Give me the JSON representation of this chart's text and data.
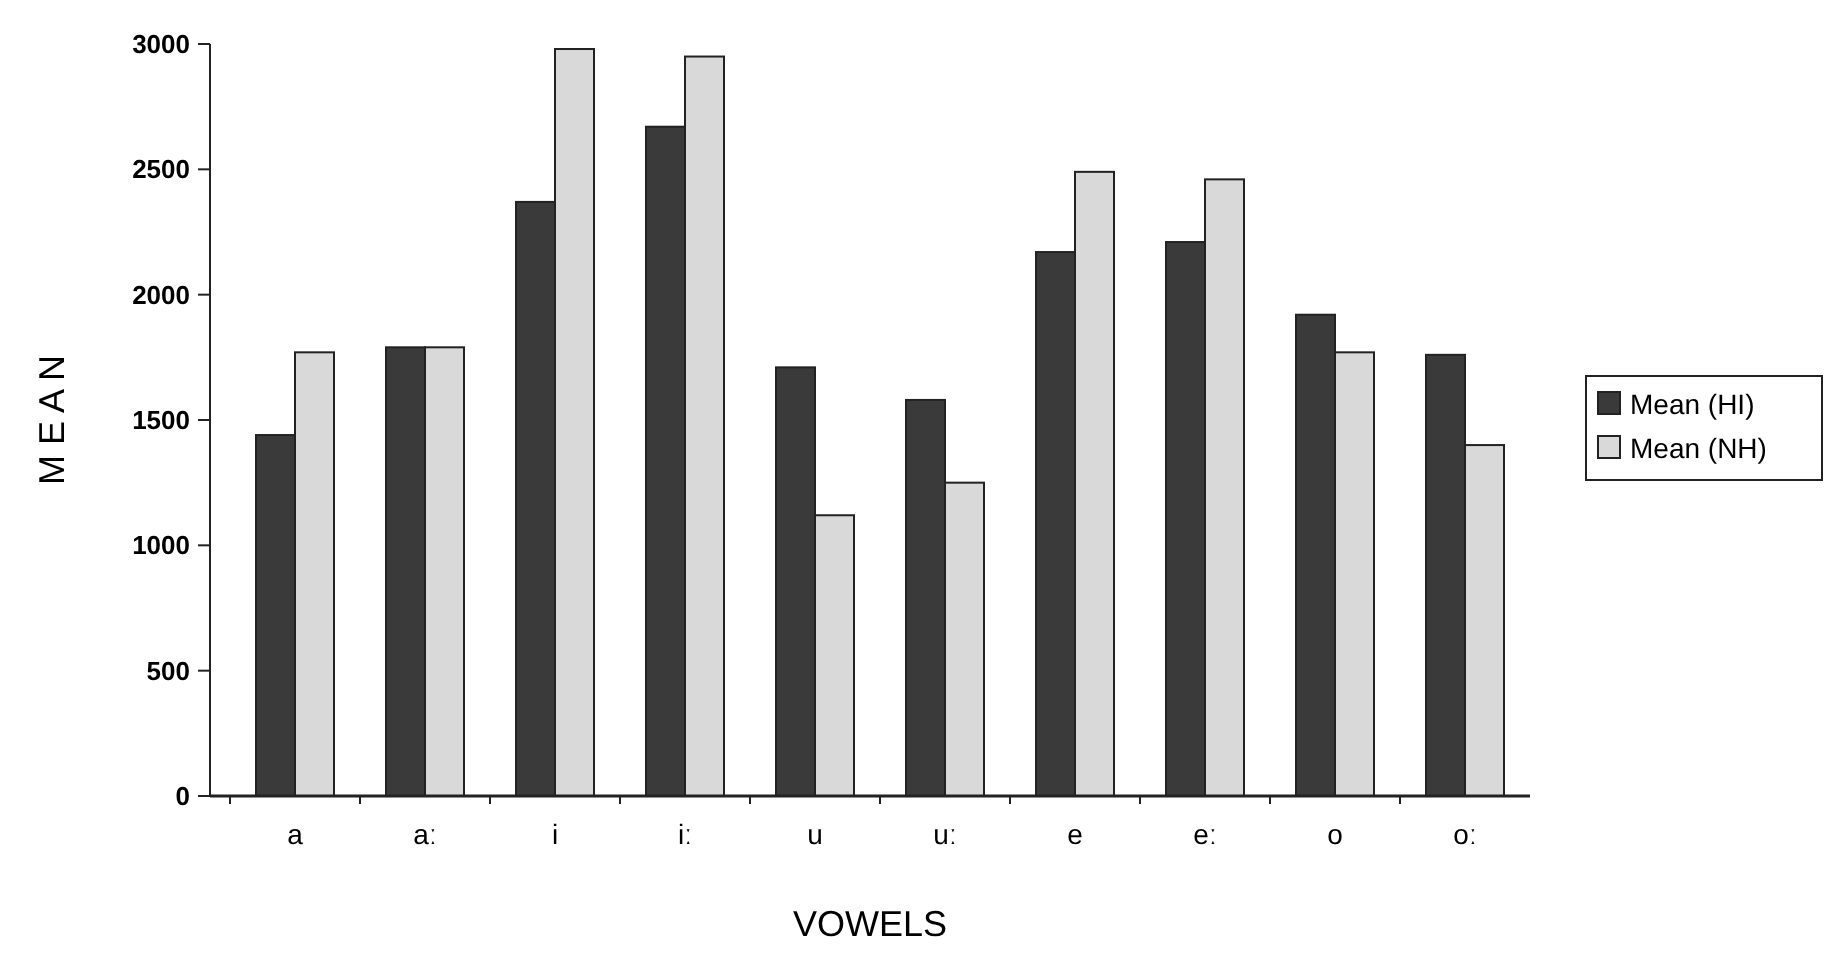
{
  "chart_data": {
    "type": "bar",
    "xlabel": "VOWELS",
    "ylabel": "M E A N",
    "categories": [
      "a",
      "aː",
      "i",
      "iː",
      "u",
      "uː",
      "e",
      "eː",
      "o",
      "oː"
    ],
    "series": [
      {
        "name": "Mean (HI)",
        "color": "#3a3a3a",
        "values": [
          1440,
          1790,
          2370,
          2670,
          1710,
          1580,
          2170,
          2210,
          1920,
          1760
        ]
      },
      {
        "name": "Mean (NH)",
        "color": "#d9d9d9",
        "values": [
          1770,
          1790,
          2980,
          2950,
          1120,
          1250,
          2490,
          2460,
          1770,
          1400
        ]
      }
    ],
    "ylim": [
      0,
      3000
    ],
    "yticks": [
      0,
      500,
      1000,
      1500,
      2000,
      2500,
      3000
    ],
    "legend": "right"
  }
}
